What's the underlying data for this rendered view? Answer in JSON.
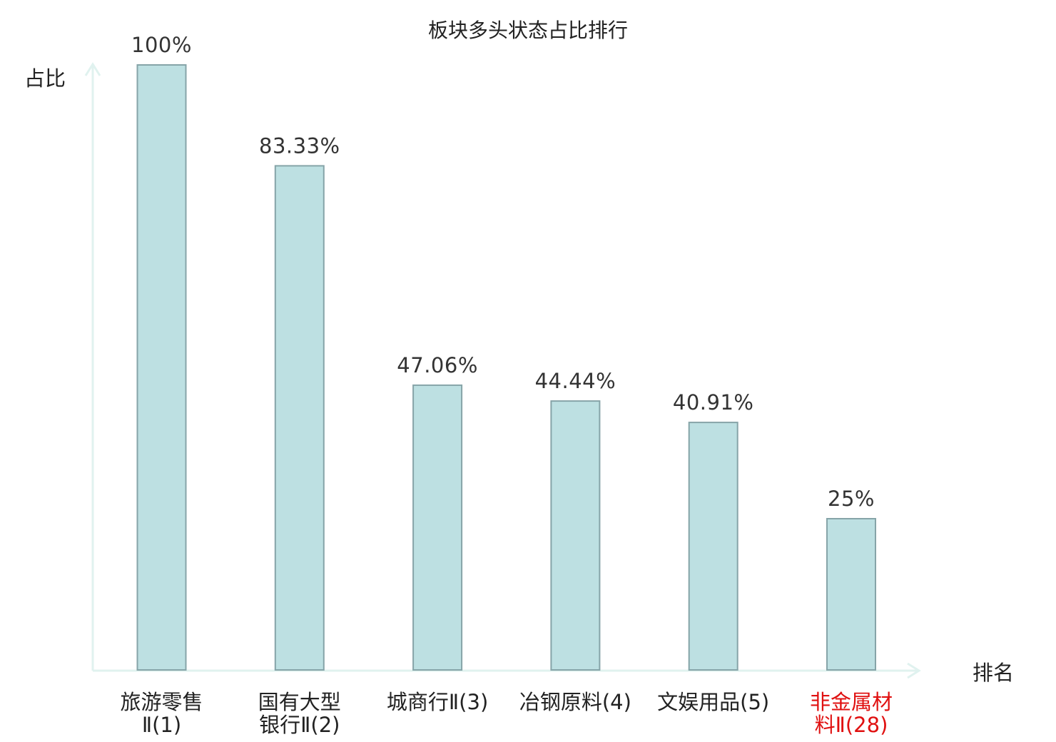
{
  "chart_data": {
    "type": "bar",
    "title": "板块多头状态占比排行",
    "ylabel": "占比",
    "xlabel": "排名",
    "ylim": [
      0,
      100
    ],
    "grid": false,
    "categories": [
      {
        "name_lines": [
          "旅游零售",
          "Ⅱ(1)"
        ],
        "highlight": false
      },
      {
        "name_lines": [
          "国有大型",
          "银行Ⅱ(2)"
        ],
        "highlight": false
      },
      {
        "name_lines": [
          "城商行Ⅱ(3)"
        ],
        "highlight": false
      },
      {
        "name_lines": [
          "冶钢原料(4)"
        ],
        "highlight": false
      },
      {
        "name_lines": [
          "文娱用品(5)"
        ],
        "highlight": false
      },
      {
        "name_lines": [
          "非金属材",
          "料Ⅱ(28)"
        ],
        "highlight": true
      }
    ],
    "values": [
      100,
      83.33,
      47.06,
      44.44,
      40.91,
      25
    ],
    "value_labels": [
      "100%",
      "83.33%",
      "47.06%",
      "44.44%",
      "40.91%",
      "25%"
    ],
    "colors": {
      "bar_fill": "#bde0e2",
      "bar_stroke": "#86a4a8",
      "axis": "#e0f2ef",
      "label_text": "#222222",
      "highlight_text": "#e01010"
    }
  }
}
